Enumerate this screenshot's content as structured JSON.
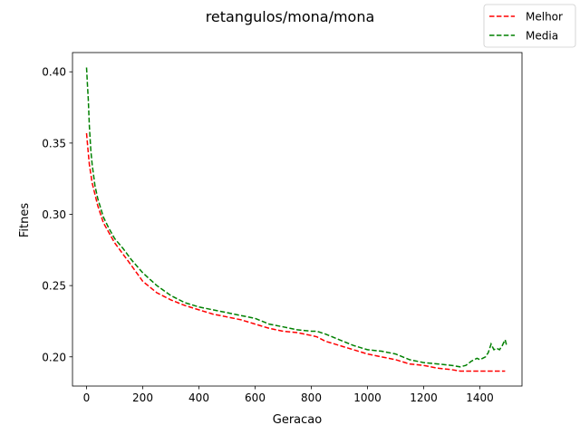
{
  "chart_data": {
    "type": "line",
    "title": "retangulos/mona/mona",
    "xlabel": "Geracao",
    "ylabel": "Fitnes",
    "xlim": [
      -50,
      1550
    ],
    "ylim": [
      0.1795,
      0.4135
    ],
    "xticks": [
      0,
      200,
      400,
      600,
      800,
      1000,
      1200,
      1400
    ],
    "yticks": [
      0.2,
      0.25,
      0.3,
      0.35,
      0.4
    ],
    "xtick_labels": [
      "0",
      "200",
      "400",
      "600",
      "800",
      "1000",
      "1200",
      "1400"
    ],
    "ytick_labels": [
      "0.20",
      "0.25",
      "0.30",
      "0.35",
      "0.40"
    ],
    "grid": false,
    "legend_position": "top-right (outside axes)",
    "series": [
      {
        "name": "Melhor",
        "color": "#ff0000",
        "style": "dashed",
        "x": [
          0,
          5,
          10,
          20,
          30,
          40,
          60,
          80,
          100,
          130,
          160,
          200,
          250,
          300,
          350,
          400,
          450,
          500,
          550,
          600,
          650,
          700,
          750,
          800,
          820,
          850,
          900,
          950,
          1000,
          1050,
          1100,
          1150,
          1200,
          1250,
          1300,
          1330,
          1350,
          1400,
          1450,
          1490
        ],
        "y": [
          0.357,
          0.346,
          0.335,
          0.322,
          0.314,
          0.306,
          0.294,
          0.287,
          0.28,
          0.272,
          0.264,
          0.253,
          0.245,
          0.24,
          0.236,
          0.233,
          0.23,
          0.228,
          0.226,
          0.223,
          0.22,
          0.218,
          0.217,
          0.215,
          0.214,
          0.211,
          0.208,
          0.205,
          0.202,
          0.2,
          0.198,
          0.195,
          0.194,
          0.192,
          0.191,
          0.19,
          0.19,
          0.19,
          0.19,
          0.19
        ]
      },
      {
        "name": "Media",
        "color": "#008000",
        "style": "dashed",
        "x": [
          0,
          3,
          6,
          10,
          15,
          20,
          30,
          40,
          60,
          80,
          100,
          130,
          160,
          200,
          250,
          300,
          350,
          400,
          450,
          500,
          550,
          600,
          650,
          700,
          750,
          800,
          820,
          850,
          900,
          950,
          1000,
          1050,
          1100,
          1150,
          1200,
          1250,
          1300,
          1330,
          1350,
          1370,
          1390,
          1400,
          1420,
          1430,
          1440,
          1450,
          1460,
          1470,
          1480,
          1485,
          1490,
          1495
        ],
        "y": [
          0.403,
          0.392,
          0.381,
          0.362,
          0.345,
          0.335,
          0.32,
          0.311,
          0.298,
          0.29,
          0.283,
          0.276,
          0.268,
          0.259,
          0.25,
          0.243,
          0.238,
          0.235,
          0.233,
          0.231,
          0.229,
          0.227,
          0.223,
          0.221,
          0.219,
          0.218,
          0.218,
          0.216,
          0.212,
          0.208,
          0.205,
          0.204,
          0.202,
          0.198,
          0.196,
          0.195,
          0.194,
          0.193,
          0.194,
          0.197,
          0.199,
          0.198,
          0.2,
          0.203,
          0.209,
          0.205,
          0.206,
          0.205,
          0.208,
          0.21,
          0.212,
          0.208
        ]
      }
    ]
  }
}
